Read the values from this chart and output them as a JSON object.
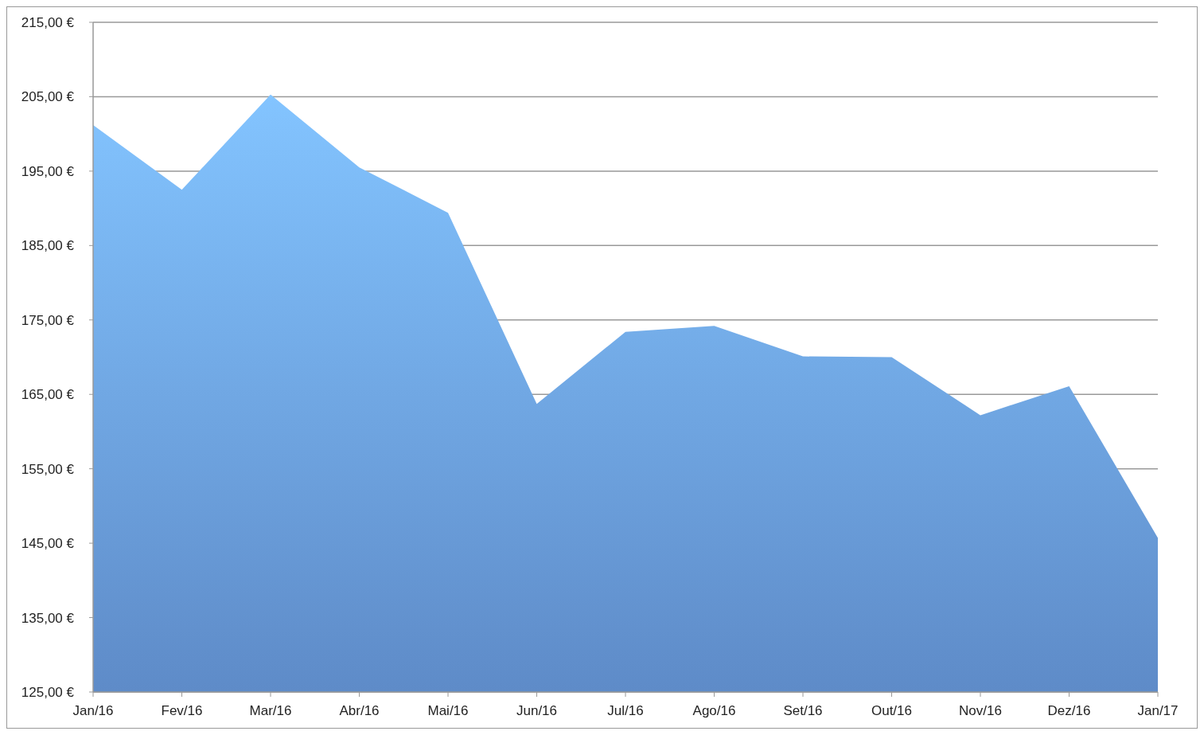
{
  "chart_data": {
    "type": "area",
    "categories": [
      "Jan/16",
      "Fev/16",
      "Mar/16",
      "Abr/16",
      "Mai/16",
      "Jun/16",
      "Jul/16",
      "Ago/16",
      "Set/16",
      "Out/16",
      "Nov/16",
      "Dez/16",
      "Jan/17"
    ],
    "values": [
      201.2,
      192.5,
      205.3,
      195.5,
      189.4,
      163.7,
      173.4,
      174.2,
      170.1,
      170.0,
      162.2,
      166.1,
      145.7
    ],
    "color": "#6a9ee3",
    "ylim": [
      125,
      215
    ],
    "yticks": [
      {
        "value": 125,
        "label": "125,00 €"
      },
      {
        "value": 135,
        "label": "135,00 €"
      },
      {
        "value": 145,
        "label": "145,00 €"
      },
      {
        "value": 155,
        "label": "155,00 €"
      },
      {
        "value": 165,
        "label": "165,00 €"
      },
      {
        "value": 175,
        "label": "175,00 €"
      },
      {
        "value": 185,
        "label": "185,00 €"
      },
      {
        "value": 195,
        "label": "195,00 €"
      },
      {
        "value": 205,
        "label": "205,00 €"
      },
      {
        "value": 215,
        "label": "215,00 €"
      }
    ],
    "grid": "y"
  }
}
